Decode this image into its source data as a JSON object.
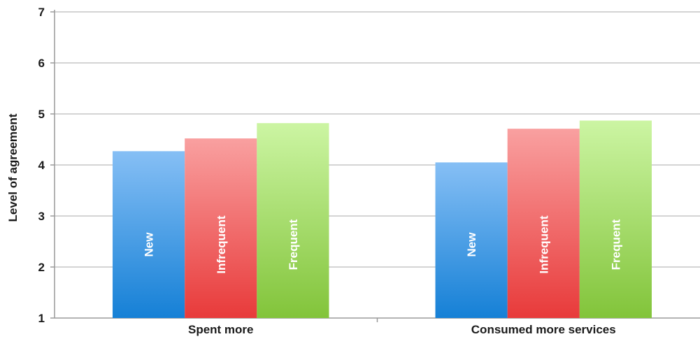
{
  "chart_data": {
    "type": "bar",
    "title": "",
    "xlabel": "",
    "ylabel": "Level of agreement",
    "ylim": [
      1,
      7
    ],
    "yticks": [
      1,
      2,
      3,
      4,
      5,
      6,
      7
    ],
    "grid": true,
    "legend": "none",
    "categories": [
      "Spent more",
      "Consumed more services"
    ],
    "series": [
      {
        "name": "New",
        "values": [
          4.27,
          4.05
        ],
        "color_top": "#86bff5",
        "color_bottom": "#1580d6"
      },
      {
        "name": "Infrequent",
        "values": [
          4.52,
          4.71
        ],
        "color_top": "#f9a0a0",
        "color_bottom": "#e83a3a"
      },
      {
        "name": "Frequent",
        "values": [
          4.82,
          4.87
        ],
        "color_top": "#ccf5a3",
        "color_bottom": "#82c43a"
      }
    ]
  }
}
